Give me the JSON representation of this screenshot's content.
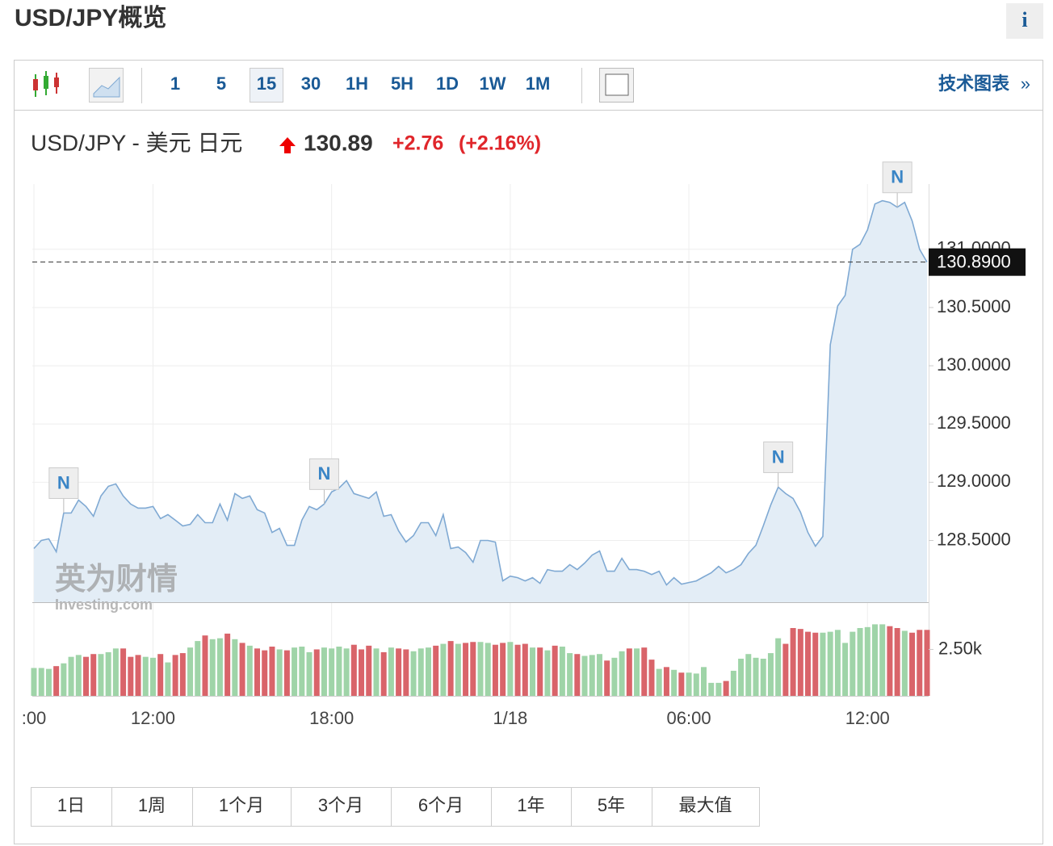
{
  "header": {
    "title": "USD/JPY概览",
    "info": "i"
  },
  "toolbar": {
    "intervals": [
      "1",
      "5",
      "15",
      "30",
      "1H",
      "5H",
      "1D",
      "1W",
      "1M"
    ],
    "selected": "15",
    "link": "技术图表",
    "link_arrow": "»"
  },
  "quote": {
    "symbol": "USD/JPY - 美元 日元",
    "price": "130.89",
    "change": "+2.76",
    "change_pct": "(+2.16%)"
  },
  "watermark": {
    "brand": "英为财情",
    "site": "Investing.com"
  },
  "chart_data": {
    "type": "line",
    "color": "#7fa9d3",
    "fill": "#e3edf6",
    "grid": true,
    "categories": [
      ":00",
      null,
      null,
      null,
      null,
      null,
      null,
      null,
      null,
      null,
      null,
      null,
      null,
      null,
      null,
      null,
      "12:00",
      null,
      null,
      null,
      null,
      null,
      null,
      null,
      null,
      null,
      null,
      null,
      null,
      null,
      null,
      null,
      null,
      null,
      null,
      null,
      null,
      null,
      null,
      null,
      "18:00",
      null,
      null,
      null,
      null,
      null,
      null,
      null,
      null,
      null,
      null,
      null,
      null,
      null,
      null,
      null,
      null,
      null,
      null,
      null,
      null,
      null,
      null,
      null,
      "1/18",
      null,
      null,
      null,
      null,
      null,
      null,
      null,
      null,
      null,
      null,
      null,
      null,
      null,
      null,
      null,
      null,
      null,
      null,
      null,
      null,
      null,
      null,
      null,
      "06:00",
      null,
      null,
      null,
      null,
      null,
      null,
      null,
      null,
      null,
      null,
      null,
      null,
      null,
      null,
      null,
      null,
      null,
      null,
      null,
      null,
      null,
      null,
      null,
      "12:00",
      null,
      null,
      null,
      null,
      null,
      null,
      null,
      null
    ],
    "values": [
      128.431,
      128.5,
      128.514,
      128.403,
      128.736,
      128.736,
      128.847,
      128.792,
      128.708,
      128.882,
      128.965,
      128.986,
      128.882,
      128.813,
      128.778,
      128.778,
      128.792,
      128.688,
      128.722,
      128.674,
      128.625,
      128.639,
      128.722,
      128.653,
      128.653,
      128.813,
      128.674,
      128.903,
      128.861,
      128.882,
      128.764,
      128.736,
      128.569,
      128.604,
      128.458,
      128.458,
      128.674,
      128.792,
      128.764,
      128.813,
      128.917,
      128.951,
      129.014,
      128.903,
      128.882,
      128.861,
      128.917,
      128.708,
      128.722,
      128.583,
      128.486,
      128.542,
      128.653,
      128.653,
      128.542,
      128.722,
      128.431,
      128.444,
      128.396,
      128.313,
      128.5,
      128.5,
      128.486,
      128.153,
      128.194,
      128.181,
      128.153,
      128.181,
      128.132,
      128.25,
      128.236,
      128.236,
      128.292,
      128.25,
      128.306,
      128.375,
      128.41,
      128.236,
      128.236,
      128.347,
      128.25,
      128.25,
      128.236,
      128.208,
      128.236,
      128.118,
      128.181,
      128.125,
      128.139,
      128.153,
      128.188,
      128.222,
      128.278,
      128.222,
      128.25,
      128.292,
      128.389,
      128.458,
      128.625,
      128.806,
      128.958,
      128.903,
      128.861,
      128.743,
      128.569,
      128.451,
      128.535,
      130.181,
      130.514,
      130.604,
      131.0,
      131.042,
      131.167,
      131.389,
      131.417,
      131.403,
      131.361,
      131.403,
      131.243,
      131.0,
      130.89
    ],
    "ylim": [
      127.97,
      131.56
    ],
    "yticks": [
      {
        "value": 128.5,
        "label": "128.5000"
      },
      {
        "value": 129.0,
        "label": "129.0000"
      },
      {
        "value": 129.5,
        "label": "129.5000"
      },
      {
        "value": 130.0,
        "label": "130.0000"
      },
      {
        "value": 130.5,
        "label": "130.5000"
      },
      {
        "value": 131.0,
        "label": "131.0000"
      }
    ],
    "price_line": {
      "value": 130.89,
      "label": "130.8900"
    },
    "annotations": [
      {
        "text": "N",
        "index": 4
      },
      {
        "text": "N",
        "index": 39
      },
      {
        "text": "N",
        "index": 100
      },
      {
        "text": "N",
        "index": 116
      }
    ],
    "volume": {
      "up_color": "#9fd4a8",
      "down_color": "#d9646a",
      "ylim": [
        0,
        5040
      ],
      "yticks": [
        {
          "value": 2500,
          "label": "2.50k"
        }
      ],
      "values": [
        1500,
        1500,
        1450,
        1600,
        1750,
        2100,
        2200,
        2100,
        2250,
        2250,
        2350,
        2550,
        2550,
        2100,
        2200,
        2100,
        2050,
        2250,
        1800,
        2200,
        2300,
        2600,
        2950,
        3250,
        3050,
        3100,
        3350,
        3050,
        2850,
        2700,
        2550,
        2450,
        2650,
        2500,
        2450,
        2600,
        2650,
        2350,
        2500,
        2600,
        2550,
        2650,
        2550,
        2750,
        2500,
        2700,
        2550,
        2350,
        2600,
        2550,
        2500,
        2400,
        2550,
        2600,
        2700,
        2800,
        2950,
        2800,
        2850,
        2900,
        2900,
        2850,
        2750,
        2850,
        2900,
        2750,
        2800,
        2600,
        2600,
        2450,
        2700,
        2650,
        2300,
        2250,
        2150,
        2200,
        2250,
        1900,
        2050,
        2400,
        2550,
        2550,
        2600,
        1950,
        1450,
        1550,
        1400,
        1250,
        1250,
        1200,
        1550,
        700,
        700,
        800,
        1350,
        2000,
        2250,
        2050,
        2000,
        2300,
        3100,
        2800,
        3650,
        3600,
        3450,
        3400,
        3400,
        3450,
        3550,
        2850,
        3450,
        3650,
        3700,
        3850,
        3850,
        3750,
        3650,
        3500,
        3400,
        3550,
        3550
      ]
    }
  },
  "ranges": [
    "1日",
    "1周",
    "1个月",
    "3个月",
    "6个月",
    "1年",
    "5年",
    "最大值"
  ]
}
